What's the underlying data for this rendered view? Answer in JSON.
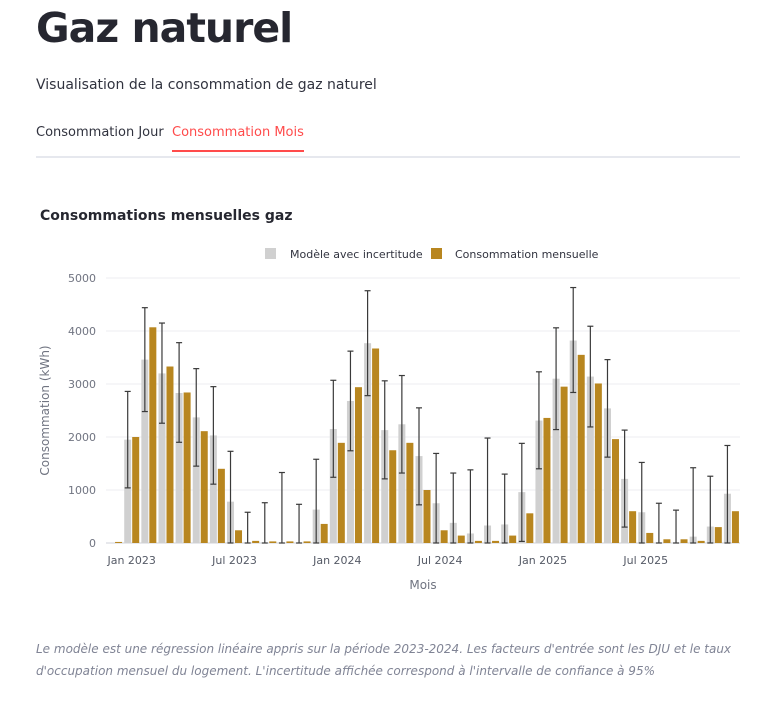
{
  "header": {
    "title": "Gaz naturel",
    "subtitle": "Visualisation de la consommation de gaz naturel"
  },
  "tabs": [
    {
      "label": "Consommation Jour",
      "active": false
    },
    {
      "label": "Consommation Mois",
      "active": true
    }
  ],
  "colors": {
    "model": "#d0d0d0",
    "consumption": "#b8861f",
    "error_bar": "#3a3a3a",
    "accent": "#ff4b4b"
  },
  "chart_data": {
    "type": "bar",
    "title": "Consommations mensuelles gaz",
    "xlabel": "Mois",
    "ylabel": "Consommation (kWh)",
    "ylim": [
      0,
      5000
    ],
    "yticks": [
      "0",
      "1000",
      "2000",
      "3000",
      "4000",
      "5000"
    ],
    "xticks": [
      {
        "label": "Jan 2023",
        "month_index": 1
      },
      {
        "label": "Jul 2023",
        "month_index": 7
      },
      {
        "label": "Jan 2024",
        "month_index": 13
      },
      {
        "label": "Jul 2024",
        "month_index": 19
      },
      {
        "label": "Jan 2025",
        "month_index": 25
      },
      {
        "label": "Jul 2025",
        "month_index": 31
      }
    ],
    "legend": {
      "position": "top"
    },
    "series": [
      {
        "name": "Modèle avec incertitude",
        "values": [
          0,
          1950,
          3460,
          3200,
          2830,
          2370,
          2030,
          780,
          0,
          0,
          0,
          0,
          630,
          2150,
          2680,
          3770,
          2130,
          2240,
          1640,
          750,
          380,
          180,
          330,
          350,
          960,
          2310,
          3100,
          3820,
          3140,
          2540,
          1210,
          580,
          0,
          0,
          120,
          310,
          930
        ],
        "error_low": [
          0,
          1040,
          2480,
          2260,
          1900,
          1450,
          1110,
          0,
          0,
          0,
          0,
          0,
          0,
          1240,
          1740,
          2780,
          1210,
          1320,
          720,
          0,
          0,
          0,
          0,
          0,
          30,
          1400,
          2140,
          2840,
          2190,
          1620,
          300,
          0,
          0,
          0,
          0,
          0,
          0
        ],
        "error_high": [
          0,
          2860,
          4440,
          4150,
          3780,
          3290,
          2950,
          1730,
          580,
          760,
          1330,
          730,
          1580,
          3070,
          3620,
          4760,
          3060,
          3160,
          2550,
          1690,
          1320,
          1380,
          1980,
          1300,
          1880,
          3230,
          4060,
          4820,
          4090,
          3460,
          2130,
          1520,
          750,
          620,
          1420,
          1260,
          1840
        ]
      },
      {
        "name": "Consommation mensuelle",
        "values": [
          20,
          2000,
          4070,
          3330,
          2840,
          2110,
          1400,
          240,
          40,
          30,
          30,
          30,
          360,
          1890,
          2940,
          3670,
          1750,
          1890,
          1000,
          240,
          140,
          40,
          40,
          140,
          560,
          2360,
          2950,
          3550,
          3010,
          1960,
          600,
          190,
          70,
          70,
          40,
          300,
          600
        ]
      }
    ]
  },
  "footnote": "Le modèle est une régression linéaire appris sur la période 2023-2024. Les facteurs d'entrée sont les DJU et le taux d'occupation mensuel du logement. L'incertitude affichée correspond à l'intervalle de confiance à 95%"
}
